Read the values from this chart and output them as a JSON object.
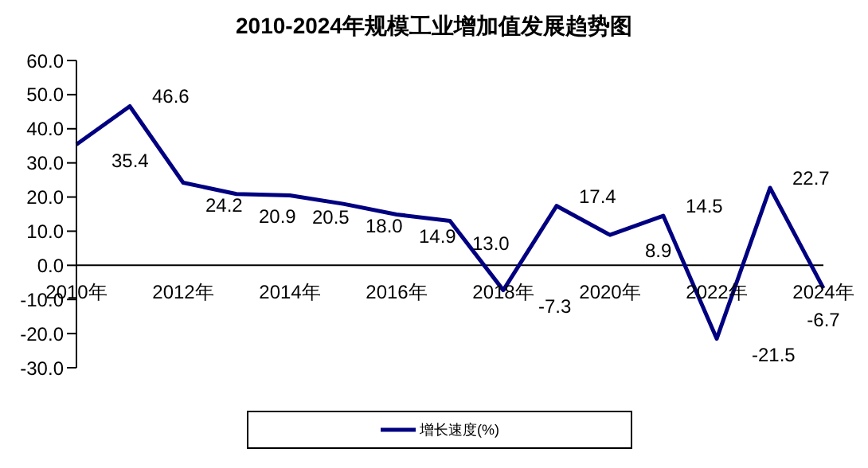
{
  "chart_data": {
    "type": "line",
    "title": "2010-2024年规模工业增加值发展趋势图",
    "categories": [
      "2010年",
      null,
      "2012年",
      null,
      "2014年",
      null,
      "2016年",
      null,
      "2018年",
      null,
      "2020年",
      null,
      "2022年",
      null,
      "2024年"
    ],
    "series": [
      {
        "name": "增长速度(%)",
        "color": "#000080",
        "values": [
          35.4,
          46.6,
          24.2,
          20.9,
          20.5,
          18.0,
          14.9,
          13.0,
          -7.3,
          17.4,
          8.9,
          14.5,
          -21.5,
          22.7,
          -6.7
        ]
      }
    ],
    "ylim": [
      -30,
      60
    ],
    "yticks": [
      {
        "value": -30,
        "label": "-30.0"
      },
      {
        "value": -20,
        "label": "-20.0"
      },
      {
        "value": -10,
        "label": "-10.0"
      },
      {
        "value": 0,
        "label": "0.0"
      },
      {
        "value": 10,
        "label": "10.0"
      },
      {
        "value": 20,
        "label": "20.0"
      },
      {
        "value": 30,
        "label": "30.0"
      },
      {
        "value": 40,
        "label": "40.0"
      },
      {
        "value": 50,
        "label": "50.0"
      },
      {
        "value": 60,
        "label": "60.0"
      }
    ],
    "value_labels": [
      "35.4",
      "46.6",
      "24.2",
      "20.9",
      "20.5",
      "18.0",
      "14.9",
      "13.0",
      "-7.3",
      "17.4",
      "8.9",
      "14.5",
      "-21.5",
      "22.7",
      "-6.7"
    ],
    "legend": "bottom",
    "grid": false,
    "marker": "none",
    "line_style": "solid"
  }
}
